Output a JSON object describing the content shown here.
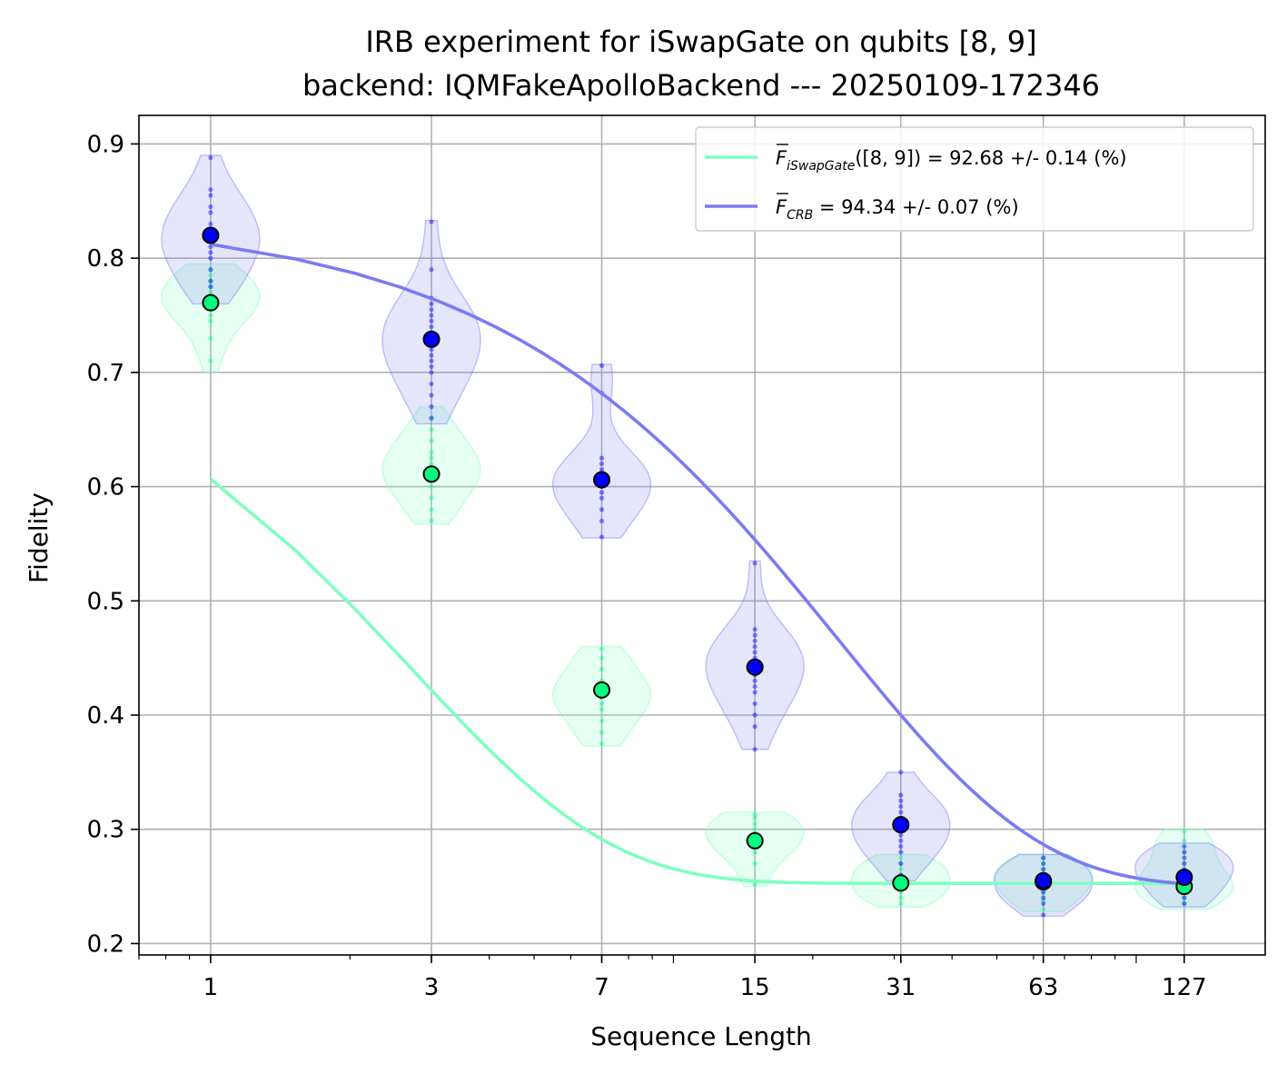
{
  "chart_data": {
    "type": "line",
    "title": "IRB experiment for iSwapGate on qubits [8, 9]",
    "subtitle": "backend: IQMFakeApolloBackend --- 20250109-172346",
    "xlabel": "Sequence Length",
    "ylabel": "Fidelity",
    "x_scale": "log",
    "x_ticks": [
      1,
      3,
      7,
      15,
      31,
      63,
      127
    ],
    "x_tick_labels": [
      "1",
      "3",
      "7",
      "15",
      "31",
      "63",
      "127"
    ],
    "y_ticks": [
      0.2,
      0.3,
      0.4,
      0.5,
      0.6,
      0.7,
      0.8,
      0.9
    ],
    "y_tick_labels": [
      "0.2",
      "0.3",
      "0.4",
      "0.5",
      "0.6",
      "0.7",
      "0.8",
      "0.9"
    ],
    "xlim": [
      0.7,
      190
    ],
    "ylim": [
      0.19,
      0.925
    ],
    "grid": true,
    "legend_position": "top-right",
    "series": [
      {
        "key": "irb",
        "legend_prefix": "F",
        "legend_subscript": "iSwapGate",
        "legend_suffix": "([8, 9]) = 92.68 +/- 0.14 (%)",
        "color": "#7fffbf",
        "marker_color": "#00ff7f",
        "fit": {
          "A": 0.512,
          "p": 0.6913,
          "B": 0.2527
        },
        "x": [
          1,
          3,
          7,
          15,
          31,
          63,
          127
        ],
        "mean": [
          0.761,
          0.611,
          0.422,
          0.29,
          0.253,
          0.254,
          0.25
        ],
        "distribution": [
          {
            "min": 0.7,
            "max": 0.795,
            "points": [
              0.71,
              0.73,
              0.745,
              0.75,
              0.755,
              0.76,
              0.765,
              0.77,
              0.775,
              0.78,
              0.785,
              0.79
            ]
          },
          {
            "min": 0.567,
            "max": 0.67,
            "points": [
              0.57,
              0.58,
              0.59,
              0.6,
              0.605,
              0.61,
              0.615,
              0.62,
              0.625,
              0.63,
              0.64,
              0.65,
              0.66
            ]
          },
          {
            "min": 0.373,
            "max": 0.46,
            "points": [
              0.375,
              0.385,
              0.395,
              0.405,
              0.41,
              0.415,
              0.42,
              0.425,
              0.43,
              0.44,
              0.45,
              0.458
            ]
          },
          {
            "min": 0.25,
            "max": 0.315,
            "points": [
              0.252,
              0.27,
              0.28,
              0.285,
              0.29,
              0.295,
              0.3,
              0.305,
              0.31,
              0.313
            ]
          },
          {
            "min": 0.232,
            "max": 0.278,
            "points": [
              0.235,
              0.24,
              0.245,
              0.25,
              0.255,
              0.26,
              0.265,
              0.27,
              0.275
            ]
          },
          {
            "min": 0.228,
            "max": 0.278,
            "points": [
              0.23,
              0.238,
              0.245,
              0.25,
              0.255,
              0.26,
              0.265,
              0.27,
              0.275
            ]
          },
          {
            "min": 0.23,
            "max": 0.3,
            "points": [
              0.235,
              0.24,
              0.245,
              0.25,
              0.255,
              0.26,
              0.27,
              0.28,
              0.29,
              0.298
            ]
          }
        ]
      },
      {
        "key": "crb",
        "legend_prefix": "F",
        "legend_subscript": "CRB",
        "legend_suffix": " = 94.34 +/- 0.07 (%)",
        "color": "#7b7bf2",
        "marker_color": "#0000ff",
        "fit": {
          "A": 0.5873,
          "p": 0.9569,
          "B": 0.2502
        },
        "x": [
          1,
          3,
          7,
          15,
          31,
          63,
          127
        ],
        "mean": [
          0.82,
          0.729,
          0.606,
          0.442,
          0.304,
          0.255,
          0.258
        ],
        "distribution": [
          {
            "min": 0.76,
            "max": 0.89,
            "points": [
              0.765,
              0.775,
              0.78,
              0.79,
              0.8,
              0.805,
              0.81,
              0.815,
              0.82,
              0.825,
              0.83,
              0.84,
              0.845,
              0.855,
              0.86,
              0.888
            ]
          },
          {
            "min": 0.655,
            "max": 0.833,
            "points": [
              0.66,
              0.67,
              0.68,
              0.69,
              0.7,
              0.705,
              0.71,
              0.715,
              0.72,
              0.725,
              0.73,
              0.735,
              0.74,
              0.745,
              0.75,
              0.755,
              0.76,
              0.765,
              0.79,
              0.832
            ]
          },
          {
            "min": 0.555,
            "max": 0.707,
            "points": [
              0.556,
              0.57,
              0.58,
              0.59,
              0.595,
              0.6,
              0.605,
              0.61,
              0.615,
              0.62,
              0.625,
              0.682,
              0.706
            ]
          },
          {
            "min": 0.37,
            "max": 0.535,
            "points": [
              0.37,
              0.39,
              0.4,
              0.41,
              0.42,
              0.425,
              0.43,
              0.435,
              0.44,
              0.445,
              0.45,
              0.455,
              0.46,
              0.465,
              0.47,
              0.475,
              0.533
            ]
          },
          {
            "min": 0.255,
            "max": 0.35,
            "points": [
              0.26,
              0.27,
              0.28,
              0.285,
              0.29,
              0.295,
              0.3,
              0.305,
              0.31,
              0.315,
              0.32,
              0.325,
              0.33,
              0.35
            ]
          },
          {
            "min": 0.224,
            "max": 0.278,
            "points": [
              0.225,
              0.235,
              0.24,
              0.245,
              0.25,
              0.255,
              0.26,
              0.265,
              0.27,
              0.275
            ]
          },
          {
            "min": 0.232,
            "max": 0.288,
            "points": [
              0.235,
              0.24,
              0.25,
              0.255,
              0.26,
              0.265,
              0.27,
              0.275,
              0.28,
              0.285
            ]
          }
        ]
      }
    ]
  }
}
